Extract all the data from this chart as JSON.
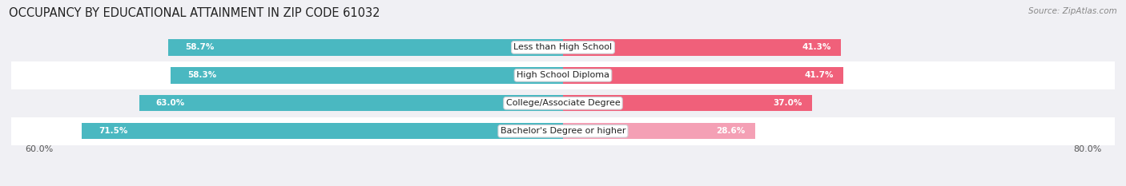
{
  "title": "OCCUPANCY BY EDUCATIONAL ATTAINMENT IN ZIP CODE 61032",
  "source": "Source: ZipAtlas.com",
  "categories": [
    "Less than High School",
    "High School Diploma",
    "College/Associate Degree",
    "Bachelor's Degree or higher"
  ],
  "owner_values": [
    58.7,
    58.3,
    63.0,
    71.5
  ],
  "renter_values": [
    41.3,
    41.7,
    37.0,
    28.6
  ],
  "owner_color": "#4ab8c1",
  "renter_colors": [
    "#f0607a",
    "#f0607a",
    "#f0607a",
    "#f4a0b5"
  ],
  "row_colors": [
    "#f0f0f4",
    "#ffffff",
    "#f0f0f4",
    "#ffffff"
  ],
  "xlim_left": -80.0,
  "xlim_right": 80.0,
  "x_left_label": "60.0%",
  "x_right_label": "80.0%",
  "title_fontsize": 10.5,
  "source_fontsize": 7.5,
  "label_fontsize": 8,
  "bar_label_fontsize": 7.5,
  "background_color": "#f0f0f4"
}
